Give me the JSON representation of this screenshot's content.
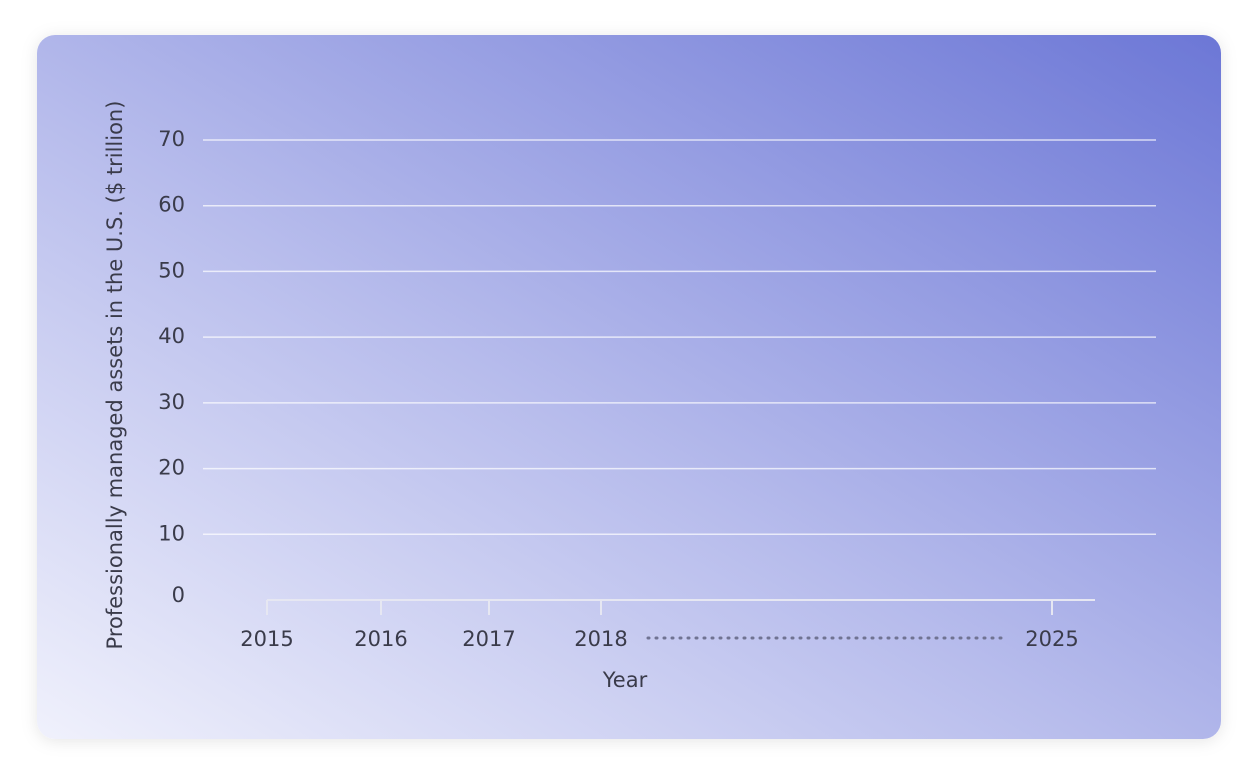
{
  "chart_data": {
    "type": "line",
    "categories": [
      "2015",
      "2016",
      "2017",
      "2018",
      "2025"
    ],
    "xlabel": "Year",
    "ylabel": "Professionally managed assets in the U.S. ($ trillion)",
    "ylim": [
      0,
      70
    ],
    "yticks": [
      0,
      10,
      20,
      30,
      40,
      50,
      60,
      70
    ],
    "grid": true
  }
}
